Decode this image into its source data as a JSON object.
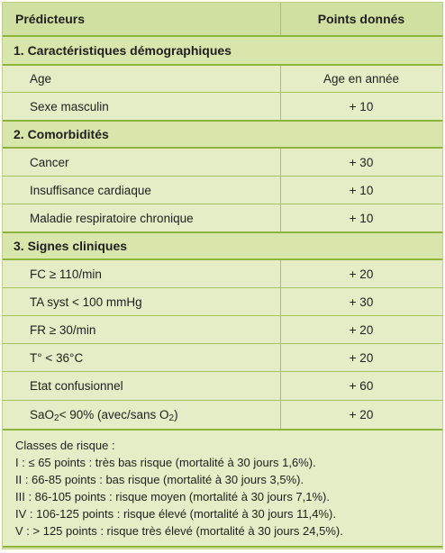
{
  "header": {
    "predictors": "Prédicteurs",
    "points": "Points donnés"
  },
  "sections": [
    {
      "title": "1. Caractéristiques démographiques"
    },
    {
      "title": "2. Comorbidités"
    },
    {
      "title": "3. Signes cliniques"
    }
  ],
  "rows": {
    "age": {
      "label": "Age",
      "points": "Age en année"
    },
    "sexe": {
      "label": "Sexe masculin",
      "points": "+ 10"
    },
    "cancer": {
      "label": "Cancer",
      "points": "+ 30"
    },
    "insuffisance": {
      "label": "Insuffisance cardiaque",
      "points": "+ 10"
    },
    "respiratoire": {
      "label": "Maladie respiratoire chronique",
      "points": "+ 10"
    },
    "fc": {
      "label": "FC ≥ 110/min",
      "points": "+ 20"
    },
    "ta": {
      "label": "TA syst < 100 mmHg",
      "points": "+ 30"
    },
    "fr": {
      "label": "FR ≥ 30/min",
      "points": "+ 20"
    },
    "temp": {
      "label": "T° < 36°C",
      "points": "+ 20"
    },
    "confusion": {
      "label": "Etat confusionnel",
      "points": "+ 60"
    },
    "sao2": {
      "label_a": "SaO",
      "sub_a": "2",
      "label_b": " < 90% (avec/sans O",
      "sub_b": "2",
      "label_c": ")",
      "points": "+ 20"
    }
  },
  "risk": {
    "title": "Classes de risque :",
    "lines": [
      "I : ≤ 65 points : très bas risque (mortalité à 30 jours 1,6%).",
      "II : 66-85 points : bas risque (mortalité à 30 jours 3,5%).",
      "III : 86-105 points : risque moyen (mortalité à 30 jours 7,1%).",
      "IV : 106-125 points : risque élevé (mortalité à 30 jours 11,4%).",
      "V : > 125 points : risque très élevé (mortalité à 30 jours 24,5%)."
    ]
  }
}
